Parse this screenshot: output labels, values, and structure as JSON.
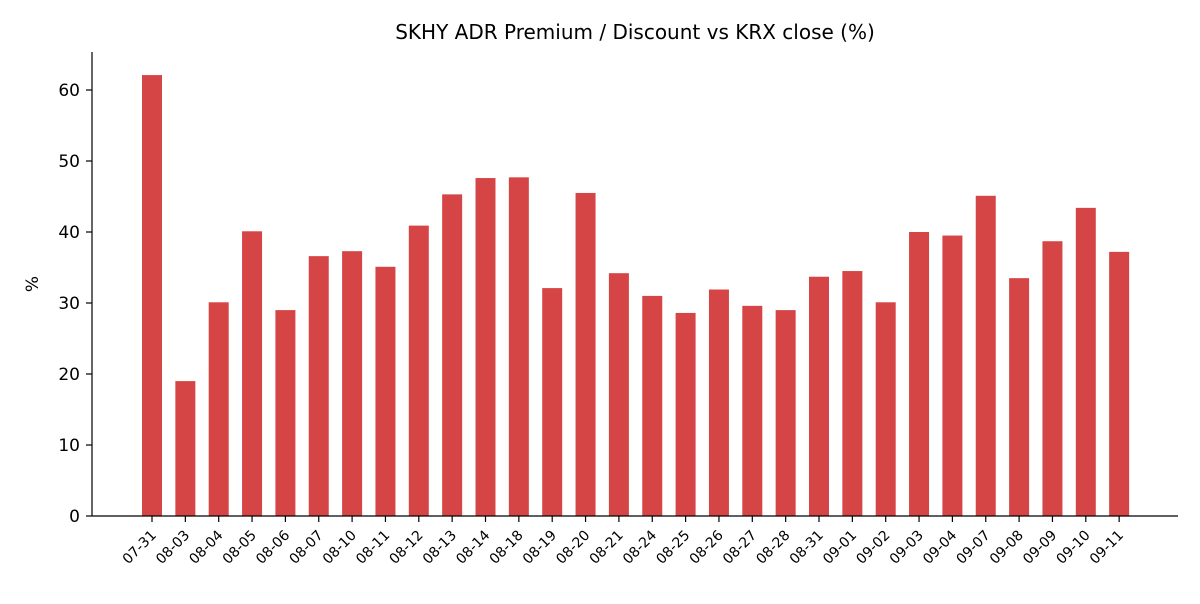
{
  "chart_data": {
    "type": "bar",
    "title": "SKHY ADR Premium / Discount vs KRX close (%)",
    "xlabel": "",
    "ylabel": "%",
    "ylim": [
      0,
      65
    ],
    "yticks": [
      0,
      10,
      20,
      30,
      40,
      50,
      60
    ],
    "grid": false,
    "legend": "none",
    "bar_color": "#d64545",
    "categories": [
      "07-31",
      "08-03",
      "08-04",
      "08-05",
      "08-06",
      "08-07",
      "08-10",
      "08-11",
      "08-12",
      "08-13",
      "08-14",
      "08-18",
      "08-19",
      "08-20",
      "08-21",
      "08-24",
      "08-25",
      "08-26",
      "08-27",
      "08-28",
      "08-31",
      "09-01",
      "09-02",
      "09-03",
      "09-04",
      "09-07",
      "09-08",
      "09-09",
      "09-10",
      "09-11"
    ],
    "values": [
      62.1,
      19.0,
      30.1,
      40.1,
      29.0,
      36.6,
      37.3,
      35.1,
      40.9,
      45.3,
      47.6,
      47.7,
      32.1,
      45.5,
      34.2,
      31.0,
      28.6,
      31.9,
      29.6,
      29.0,
      33.7,
      34.5,
      30.1,
      40.0,
      39.5,
      45.1,
      33.5,
      38.7,
      43.4,
      37.2
    ]
  }
}
